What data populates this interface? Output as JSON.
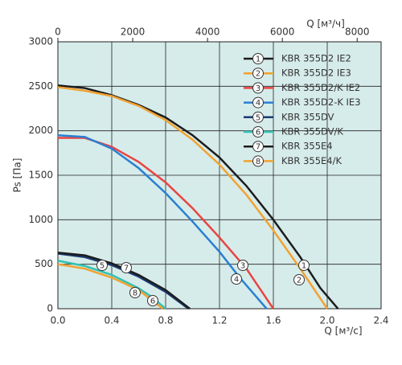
{
  "chart_data": {
    "type": "line",
    "y_label": "Ps [Па]",
    "x_label": "Q [м³/с]",
    "x2_label": "Q [м³/ч]",
    "xlim": [
      0,
      2.4
    ],
    "xticks": [
      {
        "value": 0,
        "label": "0.0"
      },
      0.4,
      0.8,
      {
        "value": 1.2,
        "label": "1.2"
      },
      {
        "value": 1.6,
        "label": "1.6"
      },
      {
        "value": 2,
        "label": "2.0"
      },
      2.4
    ],
    "x2lim": [
      0,
      8640
    ],
    "x2ticks": [
      0,
      2000,
      4000,
      6000,
      8000
    ],
    "ylim": [
      0,
      3000
    ],
    "yticks": [
      0,
      500,
      1000,
      1500,
      2000,
      2500,
      3000
    ],
    "grid": true,
    "legend": "upper right",
    "background": "#d6ecea",
    "series": [
      {
        "label": "1",
        "name": "KBR 355D2 IE2",
        "color": "#1c1c1c",
        "x": [
          0,
          0.2,
          0.4,
          0.6,
          0.8,
          1.0,
          1.2,
          1.4,
          1.6,
          1.8,
          1.95,
          2.08
        ],
        "values": [
          2510,
          2480,
          2400,
          2290,
          2150,
          1950,
          1700,
          1380,
          1000,
          580,
          230,
          0
        ]
      },
      {
        "label": "2",
        "name": "KBR 355D2 IE3",
        "color": "#f2a232",
        "x": [
          0,
          0.2,
          0.4,
          0.6,
          0.8,
          1.0,
          1.2,
          1.4,
          1.6,
          1.8,
          2.0
        ],
        "values": [
          2490,
          2450,
          2390,
          2280,
          2120,
          1900,
          1620,
          1280,
          880,
          450,
          0
        ]
      },
      {
        "label": "3",
        "name": "KBR 355D2/K IE2",
        "color": "#e84444",
        "x": [
          0,
          0.2,
          0.4,
          0.6,
          0.8,
          1.0,
          1.2,
          1.4,
          1.6
        ],
        "values": [
          1920,
          1920,
          1820,
          1650,
          1420,
          1130,
          800,
          450,
          0
        ]
      },
      {
        "label": "4",
        "name": "KBR 355D2-K IE3",
        "color": "#2a7fd2",
        "x": [
          0,
          0.2,
          0.4,
          0.6,
          0.8,
          1.0,
          1.2,
          1.35,
          1.55
        ],
        "values": [
          1950,
          1930,
          1800,
          1580,
          1300,
          980,
          640,
          350,
          0
        ]
      },
      {
        "label": "5",
        "name": "KBR 355DV",
        "color": "#1b3a72",
        "x": [
          0,
          0.2,
          0.4,
          0.6,
          0.8,
          0.97
        ],
        "values": [
          620,
          580,
          490,
          360,
          190,
          0
        ]
      },
      {
        "label": "6",
        "name": "KBR 355DV/K",
        "color": "#33c2b2",
        "x": [
          0,
          0.2,
          0.4,
          0.6,
          0.7,
          0.8
        ],
        "values": [
          540,
          480,
          380,
          230,
          130,
          0
        ]
      },
      {
        "label": "7",
        "name": "KBR 355E4",
        "color": "#1c1c1c",
        "x": [
          0,
          0.2,
          0.4,
          0.6,
          0.8,
          0.98
        ],
        "values": [
          630,
          600,
          510,
          380,
          210,
          0
        ]
      },
      {
        "label": "8",
        "name": "KBR 355E4/K",
        "color": "#f2a232",
        "x": [
          0,
          0.2,
          0.4,
          0.6,
          0.78
        ],
        "values": [
          500,
          450,
          350,
          210,
          0
        ]
      }
    ]
  }
}
